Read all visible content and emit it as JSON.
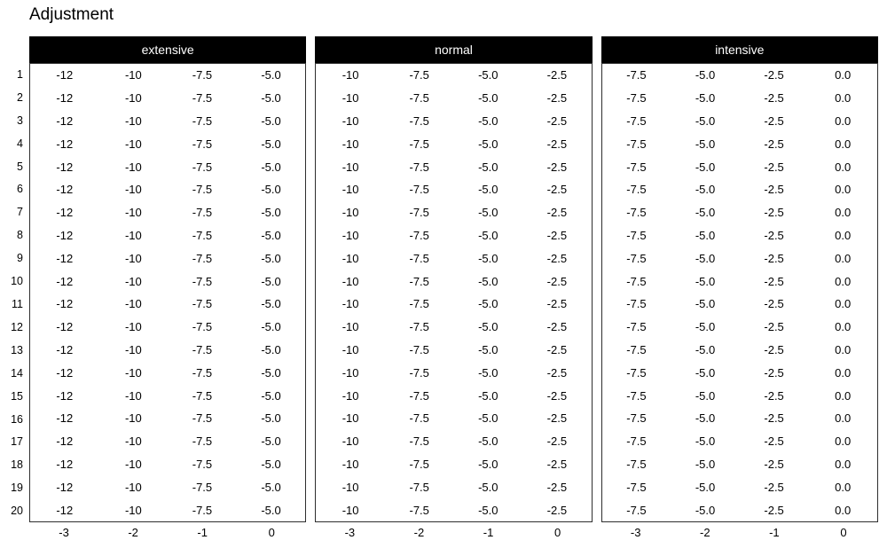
{
  "title": "Adjustment",
  "row_numbers": [
    "1",
    "2",
    "3",
    "4",
    "5",
    "6",
    "7",
    "8",
    "9",
    "10",
    "11",
    "12",
    "13",
    "14",
    "15",
    "16",
    "17",
    "18",
    "19",
    "20"
  ],
  "rows_per_panel": 20,
  "panels": [
    {
      "label": "extensive",
      "cell_text": [
        "-12",
        "-10",
        "-7.5",
        "-5.0"
      ],
      "footer_labels": [
        "-3",
        "-2",
        "-1",
        "0"
      ]
    },
    {
      "label": "normal",
      "cell_text": [
        "-10",
        "-7.5",
        "-5.0",
        "-2.5"
      ],
      "footer_labels": [
        "-3",
        "-2",
        "-1",
        "0"
      ]
    },
    {
      "label": "intensive",
      "cell_text": [
        "-7.5",
        "-5.0",
        "-2.5",
        "0.0"
      ],
      "footer_labels": [
        "-3",
        "-2",
        "-1",
        "0"
      ]
    }
  ],
  "colors": {
    "background": "#ffffff",
    "header_bg": "#000000",
    "header_text": "#ffffff",
    "body_text": "#000000",
    "border": "#2e2e2e"
  },
  "chart_data": [
    {
      "type": "table",
      "title": "extensive",
      "column_labels": [
        -3,
        -2,
        -1,
        0
      ],
      "row_labels": [
        1,
        2,
        3,
        4,
        5,
        6,
        7,
        8,
        9,
        10,
        11,
        12,
        13,
        14,
        15,
        16,
        17,
        18,
        19,
        20
      ],
      "values": [
        [
          -12,
          -10,
          -7.5,
          -5.0
        ],
        [
          -12,
          -10,
          -7.5,
          -5.0
        ],
        [
          -12,
          -10,
          -7.5,
          -5.0
        ],
        [
          -12,
          -10,
          -7.5,
          -5.0
        ],
        [
          -12,
          -10,
          -7.5,
          -5.0
        ],
        [
          -12,
          -10,
          -7.5,
          -5.0
        ],
        [
          -12,
          -10,
          -7.5,
          -5.0
        ],
        [
          -12,
          -10,
          -7.5,
          -5.0
        ],
        [
          -12,
          -10,
          -7.5,
          -5.0
        ],
        [
          -12,
          -10,
          -7.5,
          -5.0
        ],
        [
          -12,
          -10,
          -7.5,
          -5.0
        ],
        [
          -12,
          -10,
          -7.5,
          -5.0
        ],
        [
          -12,
          -10,
          -7.5,
          -5.0
        ],
        [
          -12,
          -10,
          -7.5,
          -5.0
        ],
        [
          -12,
          -10,
          -7.5,
          -5.0
        ],
        [
          -12,
          -10,
          -7.5,
          -5.0
        ],
        [
          -12,
          -10,
          -7.5,
          -5.0
        ],
        [
          -12,
          -10,
          -7.5,
          -5.0
        ],
        [
          -12,
          -10,
          -7.5,
          -5.0
        ],
        [
          -12,
          -10,
          -7.5,
          -5.0
        ]
      ]
    },
    {
      "type": "table",
      "title": "normal",
      "column_labels": [
        -3,
        -2,
        -1,
        0
      ],
      "row_labels": [
        1,
        2,
        3,
        4,
        5,
        6,
        7,
        8,
        9,
        10,
        11,
        12,
        13,
        14,
        15,
        16,
        17,
        18,
        19,
        20
      ],
      "values": [
        [
          -10,
          -7.5,
          -5.0,
          -2.5
        ],
        [
          -10,
          -7.5,
          -5.0,
          -2.5
        ],
        [
          -10,
          -7.5,
          -5.0,
          -2.5
        ],
        [
          -10,
          -7.5,
          -5.0,
          -2.5
        ],
        [
          -10,
          -7.5,
          -5.0,
          -2.5
        ],
        [
          -10,
          -7.5,
          -5.0,
          -2.5
        ],
        [
          -10,
          -7.5,
          -5.0,
          -2.5
        ],
        [
          -10,
          -7.5,
          -5.0,
          -2.5
        ],
        [
          -10,
          -7.5,
          -5.0,
          -2.5
        ],
        [
          -10,
          -7.5,
          -5.0,
          -2.5
        ],
        [
          -10,
          -7.5,
          -5.0,
          -2.5
        ],
        [
          -10,
          -7.5,
          -5.0,
          -2.5
        ],
        [
          -10,
          -7.5,
          -5.0,
          -2.5
        ],
        [
          -10,
          -7.5,
          -5.0,
          -2.5
        ],
        [
          -10,
          -7.5,
          -5.0,
          -2.5
        ],
        [
          -10,
          -7.5,
          -5.0,
          -2.5
        ],
        [
          -10,
          -7.5,
          -5.0,
          -2.5
        ],
        [
          -10,
          -7.5,
          -5.0,
          -2.5
        ],
        [
          -10,
          -7.5,
          -5.0,
          -2.5
        ],
        [
          -10,
          -7.5,
          -5.0,
          -2.5
        ]
      ]
    },
    {
      "type": "table",
      "title": "intensive",
      "column_labels": [
        -3,
        -2,
        -1,
        0
      ],
      "row_labels": [
        1,
        2,
        3,
        4,
        5,
        6,
        7,
        8,
        9,
        10,
        11,
        12,
        13,
        14,
        15,
        16,
        17,
        18,
        19,
        20
      ],
      "values": [
        [
          -7.5,
          -5.0,
          -2.5,
          0.0
        ],
        [
          -7.5,
          -5.0,
          -2.5,
          0.0
        ],
        [
          -7.5,
          -5.0,
          -2.5,
          0.0
        ],
        [
          -7.5,
          -5.0,
          -2.5,
          0.0
        ],
        [
          -7.5,
          -5.0,
          -2.5,
          0.0
        ],
        [
          -7.5,
          -5.0,
          -2.5,
          0.0
        ],
        [
          -7.5,
          -5.0,
          -2.5,
          0.0
        ],
        [
          -7.5,
          -5.0,
          -2.5,
          0.0
        ],
        [
          -7.5,
          -5.0,
          -2.5,
          0.0
        ],
        [
          -7.5,
          -5.0,
          -2.5,
          0.0
        ],
        [
          -7.5,
          -5.0,
          -2.5,
          0.0
        ],
        [
          -7.5,
          -5.0,
          -2.5,
          0.0
        ],
        [
          -7.5,
          -5.0,
          -2.5,
          0.0
        ],
        [
          -7.5,
          -5.0,
          -2.5,
          0.0
        ],
        [
          -7.5,
          -5.0,
          -2.5,
          0.0
        ],
        [
          -7.5,
          -5.0,
          -2.5,
          0.0
        ],
        [
          -7.5,
          -5.0,
          -2.5,
          0.0
        ],
        [
          -7.5,
          -5.0,
          -2.5,
          0.0
        ],
        [
          -7.5,
          -5.0,
          -2.5,
          0.0
        ],
        [
          -7.5,
          -5.0,
          -2.5,
          0.0
        ]
      ]
    }
  ]
}
